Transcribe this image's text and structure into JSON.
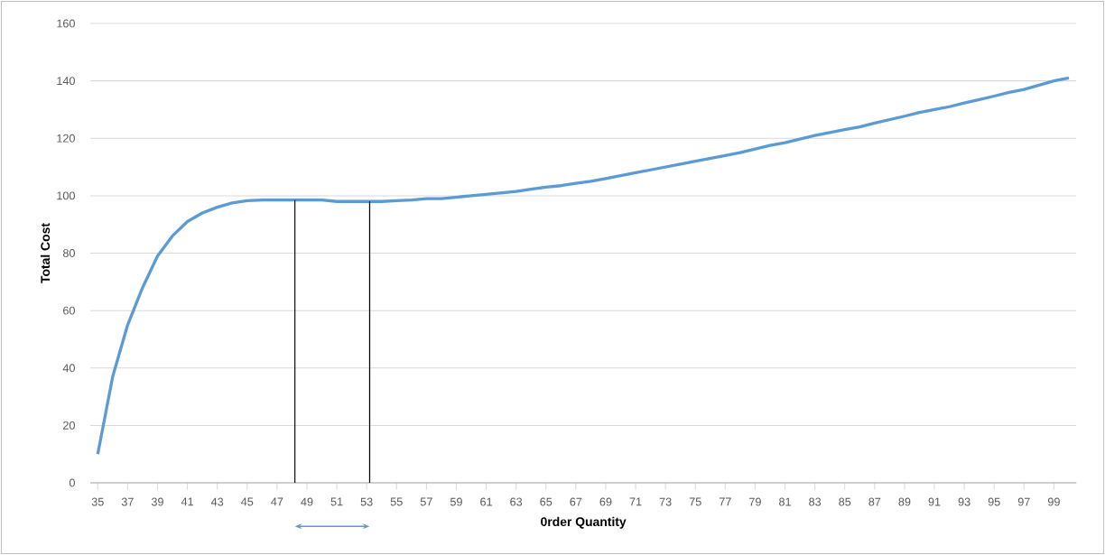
{
  "chart_data": {
    "type": "line",
    "xlabel": "0rder Quantity",
    "ylabel": "Total Cost",
    "x": [
      35,
      36,
      37,
      38,
      39,
      40,
      41,
      42,
      43,
      44,
      45,
      46,
      47,
      48,
      49,
      50,
      51,
      52,
      53,
      54,
      55,
      56,
      57,
      58,
      59,
      60,
      61,
      62,
      63,
      64,
      65,
      66,
      67,
      68,
      69,
      70,
      71,
      72,
      73,
      74,
      75,
      76,
      77,
      78,
      79,
      80,
      81,
      82,
      83,
      84,
      85,
      86,
      87,
      88,
      89,
      90,
      91,
      92,
      93,
      94,
      95,
      96,
      97,
      98,
      99,
      100
    ],
    "series": [
      {
        "color": "#5b9bd5",
        "values": [
          10,
          37,
          55,
          68,
          79,
          86,
          91,
          94,
          96,
          97.5,
          98.3,
          98.5,
          98.5,
          98.5,
          98.5,
          98.5,
          98,
          98,
          98,
          98,
          98.3,
          98.5,
          99,
          99,
          99.5,
          100,
          100.5,
          101,
          101.5,
          102.3,
          103,
          103.5,
          104.3,
          105,
          106,
          107,
          108,
          109,
          110,
          111,
          112,
          113,
          114,
          115,
          116.3,
          117.5,
          118.5,
          119.7,
          121,
          122,
          123,
          124,
          125.3,
          126.5,
          127.7,
          129,
          130,
          131,
          132.3,
          133.5,
          134.7,
          136,
          137,
          138.5,
          140,
          141
        ]
      }
    ],
    "xlim": [
      34.5,
      100.5
    ],
    "xticks": [
      35,
      37,
      39,
      41,
      43,
      45,
      47,
      49,
      51,
      53,
      55,
      57,
      59,
      61,
      63,
      65,
      67,
      69,
      71,
      73,
      75,
      77,
      79,
      81,
      83,
      85,
      87,
      89,
      91,
      93,
      95,
      97,
      99
    ],
    "ylim": [
      0,
      160
    ],
    "yticks": [
      0,
      20,
      40,
      60,
      80,
      100,
      120,
      140,
      160
    ],
    "ref_lines": [
      {
        "axis": "x",
        "value": 48.2,
        "color": "#000000"
      },
      {
        "axis": "x",
        "value": 53.2,
        "color": "#000000"
      }
    ],
    "grid": "y",
    "marker": "none",
    "line_style": "solid"
  }
}
